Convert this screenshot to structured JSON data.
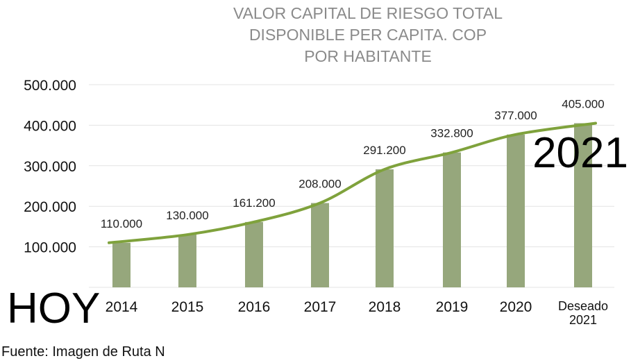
{
  "chart_data": {
    "type": "bar",
    "title_lines": [
      "VALOR CAPITAL DE RIESGO TOTAL",
      "DISPONIBLE PER CAPITA. COP",
      "POR HABITANTE"
    ],
    "categories": [
      "2014",
      "2015",
      "2016",
      "2017",
      "2018",
      "2019",
      "2020",
      "Deseado 2021"
    ],
    "values": [
      110000,
      130000,
      161200,
      208000,
      291200,
      332800,
      377000,
      405000
    ],
    "value_labels": [
      "110.000",
      "130.000",
      "161.200",
      "208.000",
      "291.200",
      "332.800",
      "377.000",
      "405.000"
    ],
    "y_ticks": [
      100000,
      200000,
      300000,
      400000,
      500000
    ],
    "y_tick_labels": [
      "100.000",
      "200.000",
      "300.000",
      "400.000",
      "500.000"
    ],
    "ylim": [
      0,
      500000
    ],
    "trend_line": true,
    "grid": true,
    "colors": {
      "bar": "#96a77c",
      "line": "#7fa23c",
      "grid": "#e3e3e3",
      "title": "#8a8a8a"
    }
  },
  "annotations": {
    "year": "2021",
    "today": "HOY"
  },
  "source": "Fuente: Imagen de Ruta N"
}
